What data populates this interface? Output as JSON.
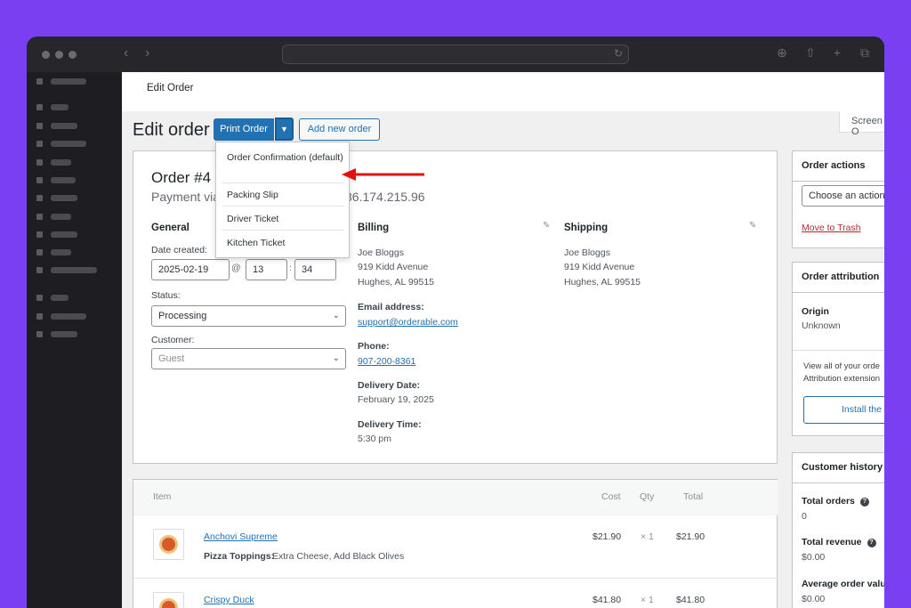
{
  "page": {
    "title": "Edit Order",
    "heading": "Edit order",
    "screen_options": "Screen O",
    "print_order_label": "Print Order",
    "print_toggle_glyph": "▼",
    "add_new_order_label": "Add new order"
  },
  "print_menu": {
    "items": [
      {
        "label": "Order Confirmation (default)"
      },
      {
        "label": "Packing Slip"
      },
      {
        "label": "Driver Ticket"
      },
      {
        "label": "Kitchen Ticket"
      }
    ]
  },
  "order": {
    "title": "Order #4",
    "payment_line": "Payment via",
    "ip_line": "mer IP: 86.174.215.96",
    "general": {
      "heading": "General",
      "date_created_label": "Date created:",
      "date": "2025-02-19",
      "at": "@",
      "hour": "13",
      "sep": ":",
      "minute": "34",
      "status_label": "Status:",
      "status": "Processing",
      "customer_label": "Customer:",
      "customer_placeholder": "Guest"
    },
    "billing": {
      "heading": "Billing",
      "name": "Joe Bloggs",
      "address1": "919 Kidd Avenue",
      "address2": "Hughes, AL 99515",
      "email_label": "Email address:",
      "email": "support@orderable.com",
      "phone_label": "Phone:",
      "phone": "907-200-8361",
      "delivery_date_label": "Delivery Date:",
      "delivery_date": "February 19, 2025",
      "delivery_time_label": "Delivery Time:",
      "delivery_time": "5:30 pm"
    },
    "shipping": {
      "heading": "Shipping",
      "name": "Joe Bloggs",
      "address1": "919 Kidd Avenue",
      "address2": "Hughes, AL 99515"
    }
  },
  "items": {
    "headers": {
      "item": "Item",
      "cost": "Cost",
      "qty": "Qty",
      "total": "Total"
    },
    "rows": [
      {
        "name": "Anchovi Supreme",
        "meta_label": "Pizza Toppings:",
        "meta_value": "Extra Cheese, Add Black Olives",
        "cost": "$21.90",
        "qty": "× 1",
        "total": "$21.90"
      },
      {
        "name": "Crispy Duck",
        "cost": "$41.80",
        "qty": "× 1",
        "total": "$41.80"
      }
    ]
  },
  "order_actions": {
    "heading": "Order actions",
    "select": "Choose an action",
    "trash": "Move to Trash"
  },
  "attribution": {
    "heading": "Order attribution",
    "origin_label": "Origin",
    "origin": "Unknown",
    "note1": "View all of your orde",
    "note2": "Attribution extension",
    "button": "Install the"
  },
  "customer_history": {
    "heading": "Customer history",
    "total_orders_label": "Total orders",
    "total_orders": "0",
    "total_revenue_label": "Total revenue",
    "total_revenue": "$0.00",
    "aov_label": "Average order valu",
    "aov": "$0.00"
  },
  "colors": {
    "accent": "#2271b1",
    "background": "#7b3ff2",
    "trash": "#b32d2e",
    "arrow": "#e3100f"
  }
}
